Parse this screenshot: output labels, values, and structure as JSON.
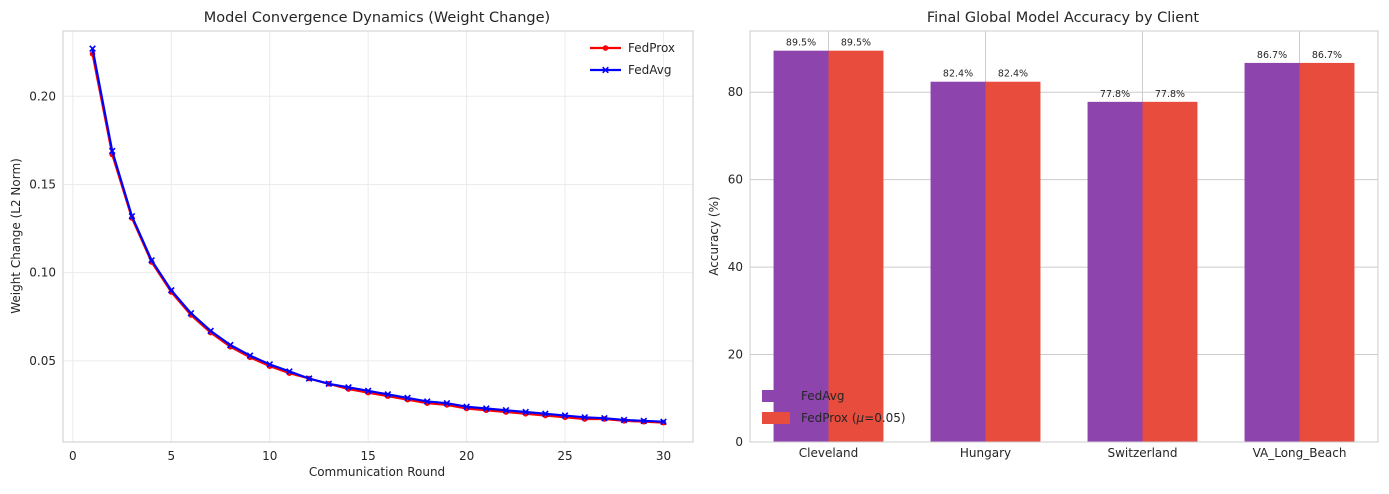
{
  "chart_data": [
    {
      "type": "line",
      "title": "Model Convergence Dynamics (Weight Change)",
      "xlabel": "Communication Round",
      "ylabel": "Weight Change (L2 Norm)",
      "xlim": [
        -0.5,
        31.5
      ],
      "ylim": [
        0.004,
        0.237
      ],
      "xticks": [
        0,
        5,
        10,
        15,
        20,
        25,
        30
      ],
      "yticks": [
        0.05,
        0.1,
        0.15,
        0.2
      ],
      "ytick_labels": [
        "0.05",
        "0.10",
        "0.15",
        "0.20"
      ],
      "grid": true,
      "legend_position": "top-right",
      "x": [
        1,
        2,
        3,
        4,
        5,
        6,
        7,
        8,
        9,
        10,
        11,
        12,
        13,
        14,
        15,
        16,
        17,
        18,
        19,
        20,
        21,
        22,
        23,
        24,
        25,
        26,
        27,
        28,
        29,
        30
      ],
      "series": [
        {
          "name": "FedProx",
          "color": "#ff0000",
          "marker": "circle",
          "values": [
            0.224,
            0.167,
            0.131,
            0.106,
            0.089,
            0.076,
            0.066,
            0.058,
            0.052,
            0.047,
            0.043,
            0.04,
            0.037,
            0.034,
            0.032,
            0.03,
            0.028,
            0.026,
            0.025,
            0.023,
            0.022,
            0.021,
            0.02,
            0.019,
            0.018,
            0.017,
            0.017,
            0.016,
            0.0155,
            0.015
          ]
        },
        {
          "name": "FedAvg",
          "color": "#0000ff",
          "marker": "x",
          "values": [
            0.227,
            0.169,
            0.132,
            0.107,
            0.09,
            0.077,
            0.067,
            0.059,
            0.053,
            0.048,
            0.044,
            0.04,
            0.037,
            0.035,
            0.033,
            0.031,
            0.029,
            0.027,
            0.026,
            0.024,
            0.023,
            0.022,
            0.021,
            0.02,
            0.019,
            0.018,
            0.0175,
            0.0165,
            0.016,
            0.0155
          ]
        }
      ]
    },
    {
      "type": "bar",
      "title": "Final Global Model Accuracy by Client",
      "xlabel": "",
      "ylabel": "Accuracy (%)",
      "ylim": [
        0,
        94
      ],
      "yticks": [
        0,
        20,
        40,
        60,
        80
      ],
      "grid": true,
      "legend_position": "bottom-left",
      "categories": [
        "Cleveland",
        "Hungary",
        "Switzerland",
        "VA_Long_Beach"
      ],
      "series": [
        {
          "name": "FedAvg",
          "color": "#8e44ad",
          "values": [
            89.5,
            82.4,
            77.8,
            86.7
          ],
          "labels": [
            "89.5%",
            "82.4%",
            "77.8%",
            "86.7%"
          ]
        },
        {
          "name": "FedProx (μ=0.05)",
          "legend_prefix": "FedProx (",
          "legend_mu": "μ",
          "legend_suffix": "=0.05)",
          "color": "#e74c3c",
          "values": [
            89.5,
            82.4,
            77.8,
            86.7
          ],
          "labels": [
            "89.5%",
            "82.4%",
            "77.8%",
            "86.7%"
          ]
        }
      ]
    }
  ]
}
